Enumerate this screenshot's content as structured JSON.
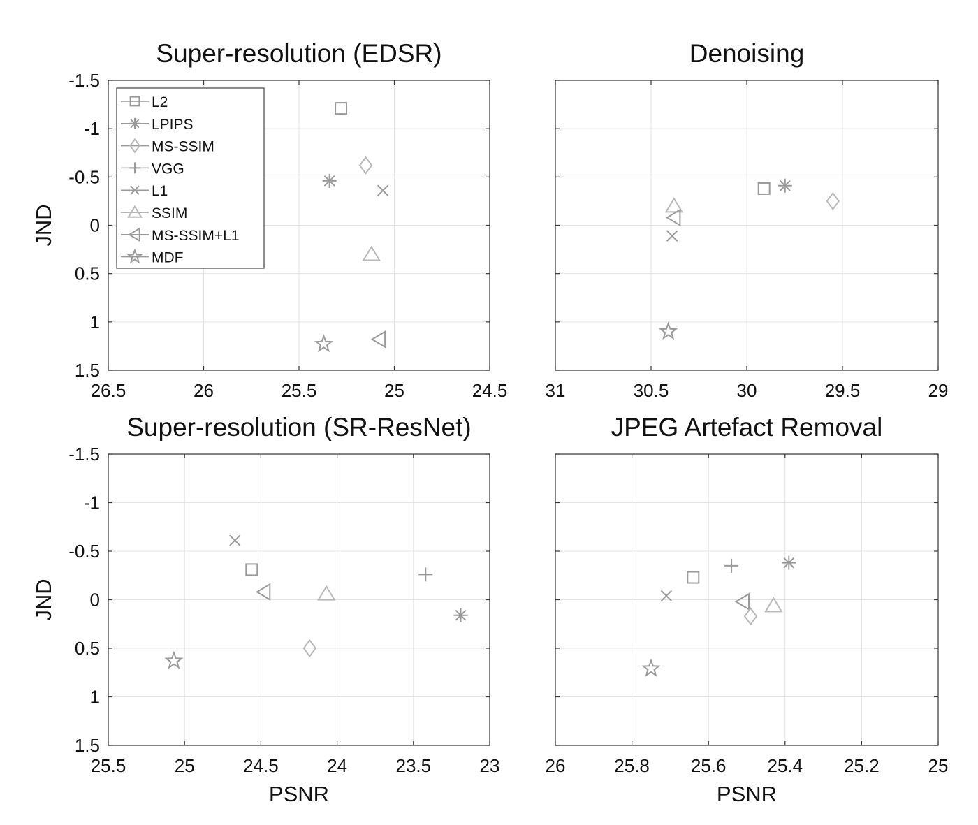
{
  "colors": {
    "marker": "#9a9a9a",
    "marker_light": "#b8b8b8",
    "grid": "#e4e4e4",
    "axis": "#333333"
  },
  "legend": {
    "placement": "top-left",
    "entries": [
      {
        "name": "L2",
        "marker": "square"
      },
      {
        "name": "LPIPS",
        "marker": "asterisk"
      },
      {
        "name": "MS-SSIM",
        "marker": "diamond"
      },
      {
        "name": "VGG",
        "marker": "plus"
      },
      {
        "name": "L1",
        "marker": "x"
      },
      {
        "name": "SSIM",
        "marker": "triangle-up"
      },
      {
        "name": "MS-SSIM+L1",
        "marker": "triangle-left"
      },
      {
        "name": "MDF",
        "marker": "star"
      }
    ]
  },
  "chart_data": [
    {
      "type": "scatter",
      "title": "Super-resolution (EDSR)",
      "xlabel": "",
      "ylabel": "JND",
      "xlim": [
        24.5,
        26.5
      ],
      "x_reversed": true,
      "xticks": [
        "26.5",
        "26",
        "25.5",
        "25",
        "24.5"
      ],
      "ylim": [
        -1.5,
        1.5
      ],
      "y_reversed": true,
      "yticks": [
        "-1.5",
        "-1",
        "-0.5",
        "0",
        "0.5",
        "1",
        "1.5"
      ],
      "grid": true,
      "points": [
        {
          "series": "L2",
          "x": 25.28,
          "y": -1.21
        },
        {
          "series": "MS-SSIM",
          "x": 25.15,
          "y": -0.62
        },
        {
          "series": "LPIPS",
          "x": 25.34,
          "y": -0.46
        },
        {
          "series": "L1",
          "x": 25.06,
          "y": -0.36
        },
        {
          "series": "SSIM",
          "x": 25.12,
          "y": 0.3
        },
        {
          "series": "MS-SSIM+L1",
          "x": 25.08,
          "y": 1.18
        },
        {
          "series": "MDF",
          "x": 25.37,
          "y": 1.23
        }
      ]
    },
    {
      "type": "scatter",
      "title": "Denoising",
      "xlabel": "",
      "ylabel": "",
      "xlim": [
        29,
        31
      ],
      "x_reversed": true,
      "xticks": [
        "31",
        "30.5",
        "30",
        "29.5",
        "29"
      ],
      "ylim": [
        -1.5,
        1.5
      ],
      "y_reversed": true,
      "grid": true,
      "points": [
        {
          "series": "L2",
          "x": 29.91,
          "y": -0.38
        },
        {
          "series": "LPIPS",
          "x": 29.8,
          "y": -0.41
        },
        {
          "series": "MS-SSIM",
          "x": 29.55,
          "y": -0.25
        },
        {
          "series": "SSIM",
          "x": 30.38,
          "y": -0.2
        },
        {
          "series": "MS-SSIM+L1",
          "x": 30.38,
          "y": -0.08
        },
        {
          "series": "L1",
          "x": 30.39,
          "y": 0.11
        },
        {
          "series": "MDF",
          "x": 30.41,
          "y": 1.1
        }
      ]
    },
    {
      "type": "scatter",
      "title": "Super-resolution (SR-ResNet)",
      "xlabel": "PSNR",
      "ylabel": "JND",
      "xlim": [
        23,
        25.5
      ],
      "x_reversed": true,
      "xticks": [
        "25.5",
        "25",
        "24.5",
        "24",
        "23.5",
        "23"
      ],
      "ylim": [
        -1.5,
        1.5
      ],
      "y_reversed": true,
      "yticks": [
        "-1.5",
        "-1",
        "-0.5",
        "0",
        "0.5",
        "1",
        "1.5"
      ],
      "grid": true,
      "points": [
        {
          "series": "L1",
          "x": 24.67,
          "y": -0.61
        },
        {
          "series": "L2",
          "x": 24.56,
          "y": -0.31
        },
        {
          "series": "MS-SSIM+L1",
          "x": 24.48,
          "y": -0.08
        },
        {
          "series": "SSIM",
          "x": 24.07,
          "y": -0.06
        },
        {
          "series": "VGG",
          "x": 23.42,
          "y": -0.26
        },
        {
          "series": "LPIPS",
          "x": 23.19,
          "y": 0.16
        },
        {
          "series": "MS-SSIM",
          "x": 24.18,
          "y": 0.5
        },
        {
          "series": "MDF",
          "x": 25.07,
          "y": 0.63
        }
      ]
    },
    {
      "type": "scatter",
      "title": "JPEG Artefact Removal",
      "xlabel": "PSNR",
      "ylabel": "",
      "xlim": [
        25,
        26
      ],
      "x_reversed": true,
      "xticks": [
        "26",
        "25.8",
        "25.6",
        "25.4",
        "25.2",
        "25"
      ],
      "ylim": [
        -1.5,
        1.5
      ],
      "y_reversed": true,
      "grid": true,
      "points": [
        {
          "series": "L2",
          "x": 25.64,
          "y": -0.23
        },
        {
          "series": "VGG",
          "x": 25.54,
          "y": -0.35
        },
        {
          "series": "LPIPS",
          "x": 25.39,
          "y": -0.38
        },
        {
          "series": "L1",
          "x": 25.71,
          "y": -0.04
        },
        {
          "series": "MS-SSIM+L1",
          "x": 25.51,
          "y": 0.02
        },
        {
          "series": "SSIM",
          "x": 25.43,
          "y": 0.06
        },
        {
          "series": "MS-SSIM",
          "x": 25.49,
          "y": 0.17
        },
        {
          "series": "MDF",
          "x": 25.75,
          "y": 0.71
        }
      ]
    }
  ]
}
